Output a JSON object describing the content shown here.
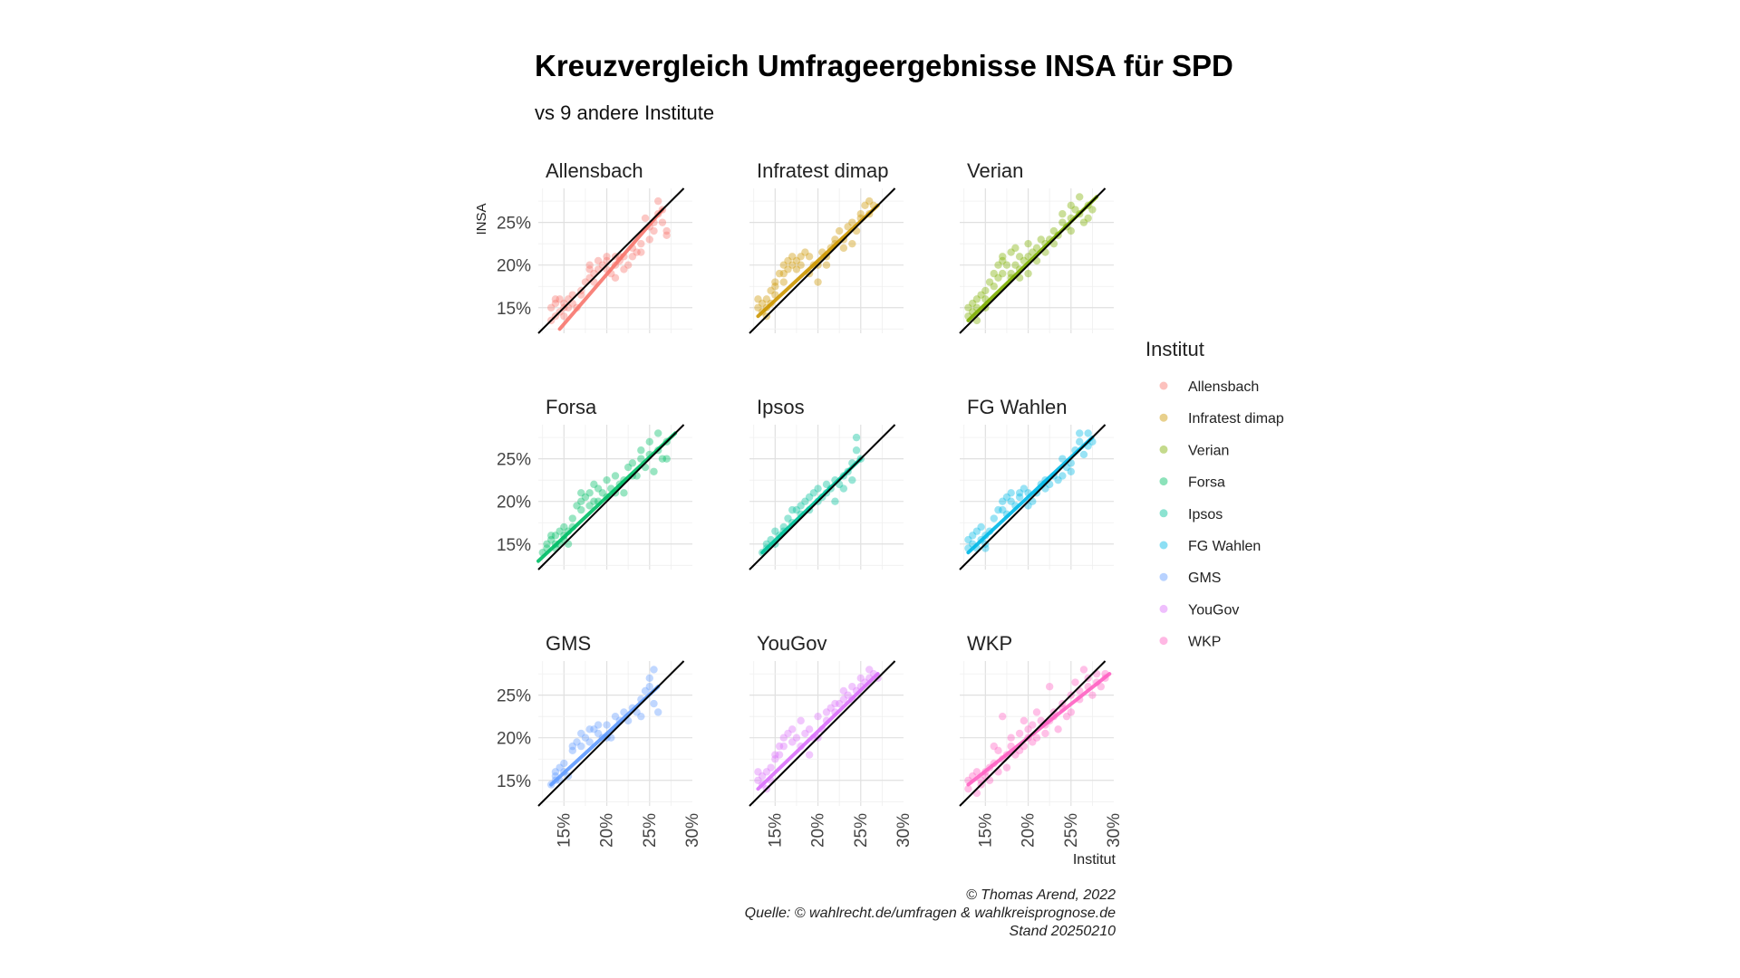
{
  "chart_data": {
    "type": "scatter",
    "title": "Kreuzvergleich Umfrageergebnisse INSA für SPD",
    "subtitle": "vs 9 andere Institute",
    "xlabel": "Institut",
    "ylabel": "INSA",
    "xlim": [
      12,
      30
    ],
    "ylim": [
      12,
      29
    ],
    "x_ticks": [
      15,
      20,
      25,
      30
    ],
    "x_tick_labels": [
      "15%",
      "20%",
      "25%",
      "30%"
    ],
    "y_ticks": [
      15,
      20,
      25
    ],
    "y_tick_labels": [
      "15%",
      "20%",
      "25%"
    ],
    "grid": true,
    "reference_line": "y = x",
    "legend_title": "Institut",
    "legend_position": "right",
    "caption": [
      "© Thomas Arend, 2022",
      "Quelle: © wahlrecht.de/umfragen & wahlkreisprognose.de",
      "Stand 20250210"
    ],
    "series": [
      {
        "name": "Allensbach",
        "color": "#F8766D",
        "fit": [
          14.5,
          12.5,
          26.5,
          26.5
        ],
        "x": [
          13.5,
          13.5,
          14,
          14,
          14,
          14.5,
          14.5,
          15,
          15,
          15,
          15.5,
          15.5,
          16,
          16,
          16.5,
          17,
          17,
          17.5,
          18,
          18,
          18,
          18.5,
          18.5,
          19,
          19,
          19.5,
          20,
          20,
          20,
          20.5,
          21,
          21,
          21,
          21.5,
          21.5,
          22,
          22,
          22.5,
          23,
          23,
          23.5,
          24,
          24,
          24.5,
          25,
          25,
          25.5,
          25.5,
          26,
          26,
          26.5,
          26.5,
          27,
          27
        ],
        "y": [
          15,
          13.5,
          14,
          16,
          15.5,
          14.5,
          16,
          15,
          15.5,
          14,
          16,
          15,
          15.5,
          16.5,
          15,
          17,
          16.5,
          18,
          18.5,
          19.5,
          20,
          18,
          19,
          19.5,
          20.5,
          20,
          21,
          19.5,
          20.5,
          19,
          21,
          20,
          18.5,
          20.5,
          21,
          21,
          19.5,
          20,
          21,
          22,
          21.5,
          22.5,
          21.5,
          25.5,
          23,
          24.5,
          25,
          24,
          27.5,
          26,
          25,
          26.5,
          24,
          23.5
        ]
      },
      {
        "name": "Infratest dimap",
        "color": "#CD9600",
        "fit": [
          13,
          14,
          27,
          27
        ],
        "x": [
          13,
          13,
          13.5,
          13.5,
          14,
          14,
          14,
          14.5,
          14.5,
          15,
          15,
          15,
          15.5,
          16,
          16,
          16,
          16.5,
          16.5,
          17,
          17,
          17.5,
          17.5,
          18,
          18,
          18.5,
          19,
          19,
          19.5,
          20,
          20,
          20.5,
          21,
          21,
          21.5,
          22,
          22,
          22.5,
          23,
          23,
          23.5,
          24,
          24,
          24.5,
          25,
          25,
          25.5,
          26,
          26,
          26.5
        ],
        "y": [
          15,
          16,
          14.5,
          15.5,
          16,
          15,
          14,
          15.5,
          17,
          17.5,
          16.5,
          18,
          19,
          20,
          19,
          18,
          20.5,
          19.5,
          21,
          20,
          19.5,
          20.5,
          20,
          21,
          21.5,
          21,
          19,
          20,
          18,
          20,
          21.5,
          21,
          20,
          22,
          22.5,
          23,
          24,
          23,
          22,
          24.5,
          25,
          22.5,
          24,
          26,
          25.5,
          27,
          27.5,
          26,
          27
        ]
      },
      {
        "name": "Verian",
        "color": "#7CAE00",
        "fit": [
          13,
          13.5,
          28,
          28
        ],
        "x": [
          13,
          13,
          13.5,
          13.5,
          14,
          14,
          14,
          14.5,
          15,
          15,
          15,
          15.5,
          16,
          16,
          16.5,
          16.5,
          17,
          17,
          17,
          17.5,
          18,
          18,
          18,
          18.5,
          18.5,
          19,
          19,
          19,
          19.5,
          20,
          20,
          20,
          20.5,
          21,
          21,
          21.5,
          22,
          22,
          22.5,
          23,
          23,
          23.5,
          24,
          24,
          24.5,
          25,
          25,
          25,
          25.5,
          26,
          26,
          26.5,
          27,
          27,
          27.5
        ],
        "y": [
          15,
          14,
          15.5,
          14.5,
          16,
          15,
          13.5,
          16.5,
          17,
          16,
          15,
          18,
          19,
          17.5,
          20,
          18.5,
          19,
          20.5,
          21,
          20,
          21.5,
          19,
          18.5,
          20,
          22,
          21,
          19.5,
          18.5,
          20.5,
          22.5,
          21,
          19,
          21.5,
          22,
          20.5,
          23,
          22.5,
          21.5,
          23,
          24,
          22.5,
          23.5,
          25,
          26,
          24.5,
          27,
          25.5,
          24,
          26.5,
          28,
          26,
          25,
          27,
          25.5,
          26.5
        ]
      },
      {
        "name": "Forsa",
        "color": "#00BE67",
        "fit": [
          12,
          13,
          28,
          28
        ],
        "x": [
          12.5,
          13,
          13,
          13.5,
          13.5,
          14,
          14,
          14,
          14.5,
          14.5,
          15,
          15,
          15,
          15.5,
          15.5,
          16,
          16,
          16.5,
          17,
          17,
          17,
          17.5,
          18,
          18,
          18.5,
          18.5,
          19,
          19,
          19.5,
          20,
          20,
          20.5,
          21,
          21,
          21.5,
          22,
          22,
          22.5,
          23,
          23,
          23.5,
          24,
          24,
          24.5,
          25,
          25,
          25.5,
          26,
          26,
          26.5,
          27,
          27
        ],
        "y": [
          14,
          14.5,
          15,
          15.5,
          16,
          14.5,
          16,
          15,
          16.5,
          15,
          17,
          15.5,
          16,
          16.5,
          15,
          18,
          17,
          19.5,
          20,
          19,
          21,
          20.5,
          21,
          19.5,
          20,
          22,
          21.5,
          20,
          21,
          22.5,
          20.5,
          21.5,
          21,
          23,
          22,
          22.5,
          21,
          24,
          23,
          24.5,
          23,
          25,
          26,
          24,
          27,
          25.5,
          23.5,
          28,
          26,
          25,
          27,
          25
        ]
      },
      {
        "name": "Ipsos",
        "color": "#00C19A",
        "fit": [
          13.5,
          14,
          25,
          25
        ],
        "x": [
          13.5,
          14,
          14,
          14.5,
          15,
          15,
          15.5,
          16,
          16,
          16.5,
          17,
          17,
          17.5,
          18,
          18,
          18.5,
          19,
          19,
          19.5,
          20,
          20,
          20.5,
          21,
          21,
          21.5,
          22,
          22,
          22.5,
          23,
          23,
          23.5,
          24,
          24,
          24.5,
          24.5,
          25
        ],
        "y": [
          14,
          14.5,
          15,
          15.5,
          15,
          16.5,
          16,
          17,
          16.5,
          18,
          17.5,
          19,
          19,
          19.5,
          18.5,
          20,
          20.5,
          19,
          21,
          21.5,
          20,
          20.5,
          22,
          21,
          21.5,
          22.5,
          20,
          22,
          23,
          21.5,
          23.5,
          24.5,
          22.5,
          26,
          27.5,
          25
        ]
      },
      {
        "name": "FG Wahlen",
        "color": "#00B8E7",
        "fit": [
          13,
          14,
          27.5,
          27.5
        ],
        "x": [
          13,
          13,
          13.5,
          13.5,
          14,
          14,
          14.5,
          14.5,
          15,
          15,
          15,
          15.5,
          16,
          16.5,
          17,
          17,
          17.5,
          17.5,
          18,
          18,
          18.5,
          19,
          19,
          19.5,
          20,
          20,
          20.5,
          21,
          21.5,
          22,
          22,
          22.5,
          23,
          23.5,
          24,
          24,
          24.5,
          25,
          25,
          25.5,
          26,
          26,
          26.5,
          27,
          27,
          27.5
        ],
        "y": [
          14.5,
          15.5,
          15,
          16,
          16.5,
          14.5,
          15.5,
          17,
          16,
          15,
          14.5,
          16.5,
          18,
          19,
          20,
          19,
          20.5,
          18.5,
          21,
          20,
          19.5,
          21,
          20.5,
          21.5,
          21,
          19.5,
          20,
          21,
          22,
          22.5,
          21.5,
          22,
          23,
          22.5,
          23,
          25,
          24,
          24.5,
          23.5,
          26,
          27,
          28,
          25.5,
          26.5,
          28,
          27
        ]
      },
      {
        "name": "GMS",
        "color": "#619CFF",
        "fit": [
          13.5,
          14.5,
          26,
          26
        ],
        "x": [
          13.5,
          14,
          14,
          14,
          14.5,
          14.5,
          15,
          15,
          15.5,
          16,
          16,
          16.5,
          17,
          17,
          17.5,
          18,
          18,
          18.5,
          19,
          19,
          19.5,
          20,
          20,
          20.5,
          21,
          21.5,
          22,
          22.5,
          23,
          23.5,
          24,
          24,
          24.5,
          25,
          25,
          25.5,
          25.5,
          26
        ],
        "y": [
          14.5,
          15.5,
          16,
          15,
          16.5,
          15,
          16,
          17,
          15.5,
          19,
          18.5,
          19.5,
          20.5,
          19,
          20,
          21,
          19.5,
          21,
          21.5,
          20.5,
          20,
          21.5,
          20,
          20,
          22.5,
          22,
          23,
          22,
          23.5,
          23,
          24.5,
          22.5,
          25.5,
          26,
          27,
          28,
          24,
          23
        ]
      },
      {
        "name": "YouGov",
        "color": "#DB72FB",
        "fit": [
          13,
          14,
          27,
          27.5
        ],
        "x": [
          13,
          13,
          13.5,
          13.5,
          14,
          14,
          14.5,
          14.5,
          15,
          15,
          15.5,
          15.5,
          16,
          16,
          16.5,
          17,
          17,
          17.5,
          18,
          18,
          18.5,
          19,
          19,
          19.5,
          20,
          20,
          20.5,
          21,
          21,
          21.5,
          22,
          22,
          22.5,
          23,
          23,
          23.5,
          24,
          24,
          24.5,
          25,
          25,
          25.5,
          26,
          26,
          26.5,
          27
        ],
        "y": [
          15,
          16,
          14.5,
          15.5,
          16,
          14,
          16.5,
          15,
          18,
          17.5,
          19,
          18,
          20,
          19,
          20.5,
          21,
          19.5,
          20,
          22,
          19,
          20.5,
          21,
          18,
          20,
          22.5,
          20,
          21,
          23,
          22,
          23.5,
          24,
          23,
          24,
          25.5,
          24.5,
          25,
          26,
          24.5,
          25.5,
          27,
          26,
          26.5,
          28,
          27,
          27.5,
          27
        ]
      },
      {
        "name": "WKP",
        "color": "#FF61C3",
        "fit": [
          13,
          14.5,
          29.5,
          27.5
        ],
        "x": [
          13,
          13,
          13.5,
          14,
          14,
          14.5,
          14.5,
          15,
          15,
          15.5,
          15.5,
          16,
          16,
          16.5,
          16.5,
          17,
          17,
          17.5,
          17.5,
          18,
          18,
          18.5,
          19,
          19,
          19.5,
          19.5,
          20,
          20,
          20.5,
          20.5,
          21,
          21,
          21.5,
          22,
          22,
          22.5,
          22.5,
          23,
          23,
          23.5,
          24,
          24,
          24.5,
          25,
          25,
          25.5,
          26,
          26,
          26.5,
          27,
          27,
          27.5,
          28,
          28,
          28.5,
          29,
          29
        ],
        "y": [
          15,
          14,
          15.5,
          16,
          13.5,
          15,
          14.5,
          16,
          15.5,
          16.5,
          15,
          17,
          19,
          16,
          18.5,
          17.5,
          22.5,
          18,
          16.5,
          19,
          20,
          18,
          20.5,
          18.5,
          19,
          22,
          21,
          20,
          19.5,
          21.5,
          20,
          23,
          22,
          21.5,
          20.5,
          22,
          26,
          23,
          22.5,
          21,
          24,
          23.5,
          22.5,
          25,
          23,
          26.5,
          25.5,
          24.5,
          28,
          26,
          27,
          25,
          27.5,
          26.5,
          26,
          27,
          27.5
        ]
      }
    ]
  }
}
